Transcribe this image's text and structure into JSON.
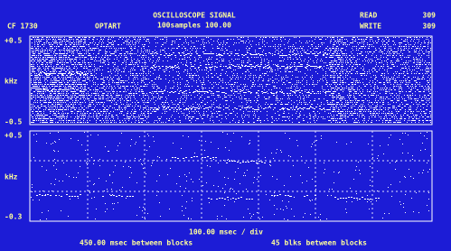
{
  "header": {
    "left": [
      "CF  1730",
      "OPTART"
    ],
    "title": "OSCILLOSCOPE SIGNAL",
    "subtitle": "100samples   100.00",
    "counters": [
      {
        "label": "READ",
        "value": "309"
      },
      {
        "label": "WRITE",
        "value": "309"
      }
    ]
  },
  "panels": [
    {
      "top": "+0.5",
      "unit": "kHz",
      "bottom": "-0.5"
    },
    {
      "top": "+0.5",
      "unit": "kHz",
      "bottom": "-0.3"
    }
  ],
  "footer": {
    "scale": "100.00  msec / div",
    "gap": "450.00  msec between blocks",
    "blocks": "45  blks between blocks"
  }
}
